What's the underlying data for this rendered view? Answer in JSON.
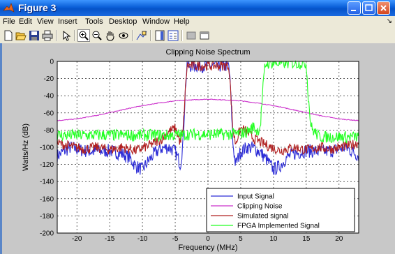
{
  "window": {
    "title": "Figure 3"
  },
  "menu": [
    "File",
    "Edit",
    "View",
    "Insert",
    "Tools",
    "Desktop",
    "Window",
    "Help"
  ],
  "toolbar_icons": [
    "new-file-icon",
    "open-file-icon",
    "save-icon",
    "print-icon",
    "pointer-icon",
    "zoom-in-icon",
    "zoom-out-icon",
    "pan-hand-icon",
    "rotate-3d-icon",
    "data-cursor-icon",
    "colorbar-icon",
    "legend-icon",
    "hide-plot-tools-icon",
    "show-plot-tools-icon"
  ],
  "colors": {
    "input": "#2b2bd6",
    "clipping": "#cc33cc",
    "simulated": "#b02020",
    "fpga": "#22ff22",
    "titlebar": "#0a5fd8"
  },
  "chart_data": {
    "type": "line",
    "title": "Clipping Noise Spectrum",
    "xlabel": "Frequency (MHz)",
    "ylabel": "Watts/Hz (dB)",
    "xlim": [
      -23,
      23
    ],
    "ylim": [
      -200,
      0
    ],
    "xticks": [
      -20,
      -15,
      -10,
      -5,
      0,
      5,
      10,
      15,
      20
    ],
    "yticks": [
      0,
      -20,
      -40,
      -60,
      -80,
      -100,
      -120,
      -140,
      -160,
      -180,
      -200
    ],
    "grid": true,
    "legend_position": "bottom-right",
    "series": [
      {
        "name": "Input Signal",
        "x": [
          -23,
          -21,
          -19,
          -17,
          -15,
          -13,
          -12,
          -11,
          -10,
          -9,
          -8,
          -7,
          -6,
          -5,
          -4.2,
          -3.8,
          -3.5,
          -3.2,
          -2,
          0,
          2,
          3.2,
          3.5,
          3.8,
          4.2,
          5,
          6,
          7,
          8,
          9,
          10,
          11,
          12,
          13,
          15,
          17,
          19,
          21,
          23
        ],
        "y": [
          -110,
          -100,
          -104,
          -105,
          -104,
          -108,
          -112,
          -122,
          -126,
          -115,
          -106,
          -101,
          -100,
          -105,
          -120,
          -95,
          -40,
          -5,
          -5,
          -5,
          -5,
          -5,
          -40,
          -95,
          -120,
          -105,
          -100,
          -101,
          -106,
          -115,
          -126,
          -122,
          -112,
          -108,
          -104,
          -105,
          -104,
          -100,
          -110
        ]
      },
      {
        "name": "Clipping Noise",
        "x": [
          -23,
          -20,
          -17,
          -14,
          -11,
          -8,
          -5,
          -3,
          0,
          3,
          5,
          8,
          11,
          14,
          17,
          20,
          23
        ],
        "y": [
          -69,
          -67,
          -63,
          -58,
          -53,
          -49,
          -46,
          -45,
          -44,
          -45,
          -46,
          -49,
          -53,
          -58,
          -63,
          -67,
          -69
        ]
      },
      {
        "name": "Simulated signal",
        "x": [
          -23,
          -21,
          -19,
          -17,
          -15,
          -13,
          -11,
          -9,
          -7,
          -6,
          -5,
          -4.2,
          -3.8,
          -3.5,
          -3.2,
          -2,
          0,
          2,
          3.2,
          3.5,
          3.8,
          4.2,
          5,
          6,
          7,
          9,
          11,
          13,
          15,
          17,
          19,
          21,
          23
        ],
        "y": [
          -95,
          -99,
          -102,
          -100,
          -103,
          -100,
          -104,
          -98,
          -90,
          -82,
          -78,
          -95,
          -80,
          -40,
          -5,
          -5,
          -5,
          -5,
          -5,
          -40,
          -80,
          -95,
          -78,
          -82,
          -90,
          -98,
          -104,
          -100,
          -103,
          -100,
          -102,
          -99,
          -95
        ]
      },
      {
        "name": "FPGA Implemented Signal",
        "x": [
          -23,
          -20,
          -17,
          -14,
          -11,
          -8,
          -5,
          -3,
          0,
          3,
          5,
          6,
          7,
          7.5,
          8,
          8.3,
          8.7,
          9,
          12,
          15,
          15.3,
          15.7,
          16,
          17,
          19,
          21,
          23
        ],
        "y": [
          -86,
          -86,
          -86,
          -86,
          -86,
          -86,
          -86,
          -85,
          -85,
          -85,
          -84,
          -82,
          -76,
          -82,
          -75,
          -40,
          -5,
          -2,
          -2,
          -2,
          -40,
          -75,
          -80,
          -88,
          -88,
          -88,
          -88
        ]
      }
    ]
  }
}
